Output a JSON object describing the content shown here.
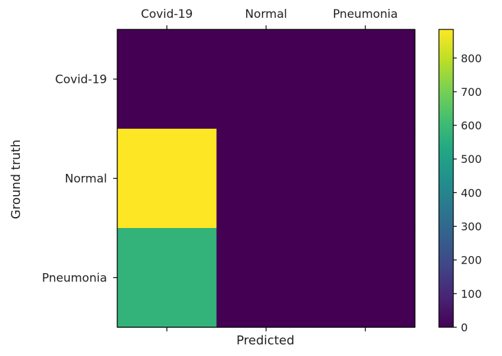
{
  "chart_data": {
    "type": "heatmap",
    "title": "",
    "xlabel": "Predicted",
    "ylabel": "Ground truth",
    "x_categories": [
      "Covid-19",
      "Normal",
      "Pneumonia"
    ],
    "y_categories": [
      "Covid-19",
      "Normal",
      "Pneumonia"
    ],
    "x_tick_position": "top",
    "matrix": [
      [
        0,
        0,
        0
      ],
      [
        885,
        0,
        0
      ],
      [
        575,
        0,
        0
      ]
    ],
    "colormap": "viridis",
    "colorbar": {
      "min": 0,
      "max": 885,
      "ticks": [
        0,
        100,
        200,
        300,
        400,
        500,
        600,
        700,
        800
      ]
    },
    "grid": false
  }
}
